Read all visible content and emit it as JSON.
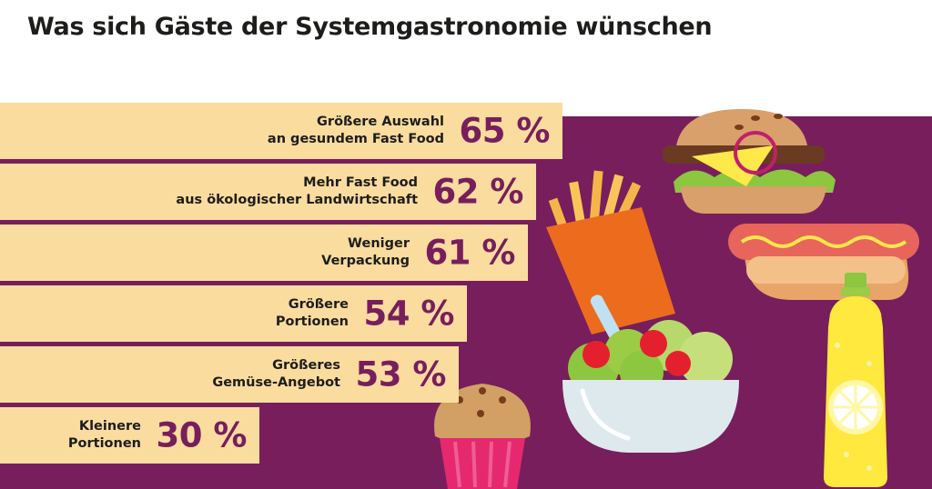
{
  "title": "Was sich Gäste der Systemgastronomie wünschen",
  "chart_data": {
    "type": "bar",
    "title": "Was sich Gäste der Systemgastronomie wünschen",
    "unit": "%",
    "categories": [
      [
        "Größere Auswahl",
        "an gesundem Fast Food"
      ],
      [
        "Mehr Fast Food",
        "aus ökologischer Landwirtschaft"
      ],
      [
        "Weniger",
        "Verpackung"
      ],
      [
        "Größere",
        "Portionen"
      ],
      [
        "Größeres",
        "Gemüse-Angebot"
      ],
      [
        "Kleinere",
        "Portionen"
      ]
    ],
    "values": [
      65,
      62,
      61,
      54,
      53,
      30
    ],
    "value_labels": [
      "65 %",
      "62 %",
      "61 %",
      "54 %",
      "53 %",
      "30 %"
    ],
    "orientation": "horizontal",
    "xlim": [
      0,
      100
    ]
  },
  "colors": {
    "bar": "#fbdc9f",
    "background_panel": "#781e5c",
    "value_text": "#781e5c",
    "label_text": "#1d1d1b"
  },
  "illustrations": [
    "burger-icon",
    "hot-dog-icon",
    "french-fries-icon",
    "salad-bowl-icon",
    "lemonade-bottle-icon",
    "muffin-icon"
  ]
}
